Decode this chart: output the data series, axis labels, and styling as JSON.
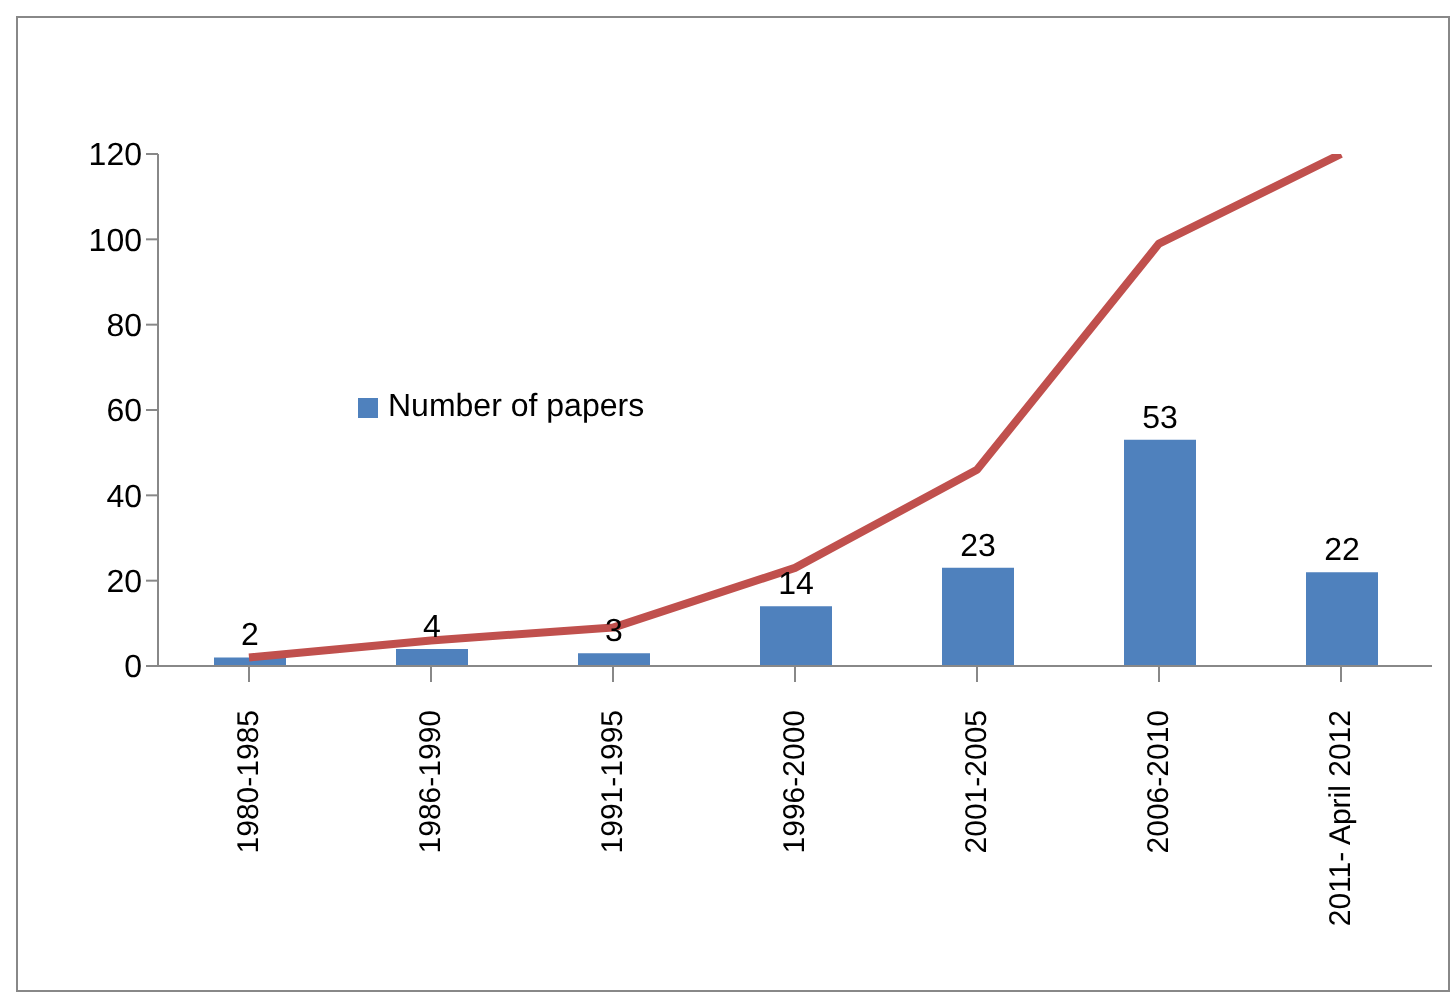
{
  "chart_data": {
    "type": "bar",
    "categories": [
      "1980-1985",
      "1986-1990",
      "1991-1995",
      "1996-2000",
      "2001-2005",
      "2006-2010",
      "2011- April 2012"
    ],
    "series": [
      {
        "name": "Number of papers",
        "color": "#4f81bd",
        "values": [
          2,
          4,
          3,
          14,
          23,
          53,
          22
        ],
        "value_labels": [
          "2",
          "4",
          "3",
          "14",
          "23",
          "53",
          "22"
        ]
      },
      {
        "type": "line",
        "color": "#c0504d",
        "values": [
          2,
          6,
          9,
          23,
          46,
          99,
          120
        ]
      }
    ],
    "ylim": [
      0,
      120
    ],
    "yticks": [
      0,
      20,
      40,
      60,
      80,
      100,
      120
    ],
    "grid": false,
    "legend": "left",
    "marker": "none",
    "line_style": "solid"
  }
}
